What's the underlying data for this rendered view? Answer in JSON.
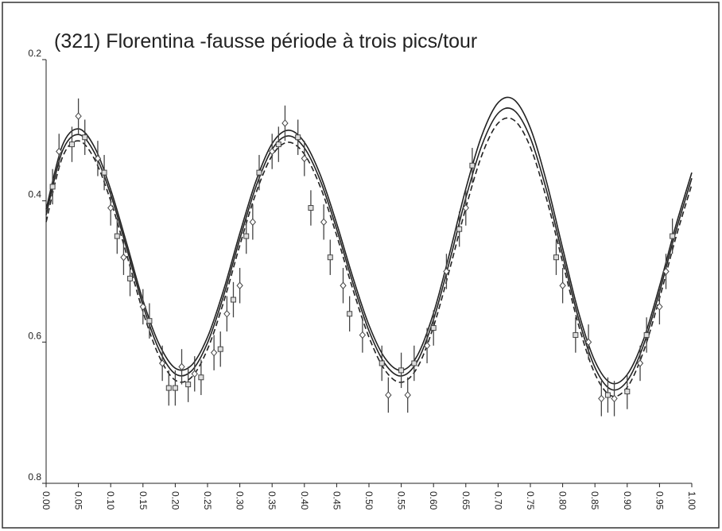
{
  "chart_data": {
    "type": "line",
    "title": "(321) Florentina -fausse période à trois pics/tour",
    "x": [
      0,
      0.025,
      0.05,
      0.075,
      0.1,
      0.125,
      0.15,
      0.175,
      0.2,
      0.225,
      0.25,
      0.275,
      0.3,
      0.325,
      0.35,
      0.375,
      0.4,
      0.425,
      0.45,
      0.475,
      0.5,
      0.525,
      0.55,
      0.575,
      0.6,
      0.625,
      0.65,
      0.675,
      0.7,
      0.725,
      0.75,
      0.775,
      0.8,
      0.825,
      0.85,
      0.875,
      0.9,
      0.925,
      0.95,
      0.975,
      1.0
    ],
    "series": [
      {
        "color": "#222",
        "dash": false,
        "values": [
          0.42,
          0.33,
          0.306,
          0.332,
          0.391,
          0.468,
          0.548,
          0.611,
          0.645,
          0.641,
          0.601,
          0.534,
          0.454,
          0.38,
          0.327,
          0.308,
          0.325,
          0.372,
          0.44,
          0.516,
          0.584,
          0.631,
          0.648,
          0.627,
          0.568,
          0.485,
          0.396,
          0.321,
          0.276,
          0.272,
          0.311,
          0.385,
          0.477,
          0.568,
          0.636,
          0.667,
          0.655,
          0.605,
          0.529,
          0.444,
          0.368
        ]
      },
      {
        "color": "#222",
        "dash": false,
        "values": [
          0.412,
          0.322,
          0.298,
          0.324,
          0.384,
          0.461,
          0.541,
          0.603,
          0.637,
          0.633,
          0.593,
          0.526,
          0.446,
          0.372,
          0.319,
          0.3,
          0.317,
          0.364,
          0.432,
          0.508,
          0.576,
          0.623,
          0.64,
          0.619,
          0.559,
          0.474,
          0.383,
          0.307,
          0.261,
          0.257,
          0.297,
          0.373,
          0.467,
          0.559,
          0.627,
          0.658,
          0.646,
          0.597,
          0.521,
          0.436,
          0.36
        ]
      },
      {
        "color": "#222",
        "dash": true,
        "values": [
          0.43,
          0.339,
          0.315,
          0.341,
          0.4,
          0.477,
          0.557,
          0.62,
          0.654,
          0.65,
          0.61,
          0.543,
          0.463,
          0.389,
          0.336,
          0.317,
          0.334,
          0.381,
          0.449,
          0.525,
          0.593,
          0.64,
          0.657,
          0.636,
          0.578,
          0.497,
          0.41,
          0.335,
          0.29,
          0.286,
          0.324,
          0.397,
          0.487,
          0.577,
          0.645,
          0.676,
          0.664,
          0.614,
          0.538,
          0.453,
          0.377
        ]
      }
    ],
    "points": [
      {
        "marker": "square",
        "color": "#444",
        "error": 0.025,
        "x": [
          0.01,
          0.04,
          0.06,
          0.09,
          0.11,
          0.13,
          0.16,
          0.19,
          0.2,
          0.22,
          0.24,
          0.27,
          0.29,
          0.31,
          0.33,
          0.36,
          0.39,
          0.41,
          0.44,
          0.47,
          0.52,
          0.55,
          0.57,
          0.6,
          0.64,
          0.66,
          0.79,
          0.82,
          0.87,
          0.9,
          0.93,
          0.97
        ],
        "values": [
          0.38,
          0.32,
          0.31,
          0.36,
          0.45,
          0.51,
          0.57,
          0.665,
          0.665,
          0.66,
          0.65,
          0.61,
          0.54,
          0.45,
          0.36,
          0.32,
          0.31,
          0.41,
          0.48,
          0.56,
          0.63,
          0.64,
          0.63,
          0.58,
          0.44,
          0.35,
          0.48,
          0.59,
          0.675,
          0.67,
          0.59,
          0.45
        ]
      },
      {
        "marker": "diamond",
        "color": "#444",
        "error": 0.025,
        "x": [
          0.02,
          0.05,
          0.08,
          0.1,
          0.12,
          0.15,
          0.18,
          0.21,
          0.23,
          0.26,
          0.28,
          0.3,
          0.32,
          0.35,
          0.37,
          0.4,
          0.43,
          0.46,
          0.49,
          0.53,
          0.56,
          0.59,
          0.62,
          0.65,
          0.8,
          0.84,
          0.86,
          0.88,
          0.92,
          0.95,
          0.96
        ],
        "values": [
          0.33,
          0.28,
          0.34,
          0.41,
          0.48,
          0.55,
          0.63,
          0.635,
          0.645,
          0.615,
          0.56,
          0.52,
          0.43,
          0.33,
          0.29,
          0.34,
          0.43,
          0.52,
          0.59,
          0.675,
          0.675,
          0.605,
          0.5,
          0.41,
          0.52,
          0.6,
          0.68,
          0.68,
          0.63,
          0.55,
          0.5
        ]
      }
    ],
    "xlim": [
      0,
      1
    ],
    "xticks": [
      {
        "value": 0,
        "label": "0.00"
      },
      {
        "value": 0.05,
        "label": "0.05"
      },
      {
        "value": 0.1,
        "label": "0.10"
      },
      {
        "value": 0.15,
        "label": "0.15"
      },
      {
        "value": 0.2,
        "label": "0.20"
      },
      {
        "value": 0.25,
        "label": "0.25"
      },
      {
        "value": 0.3,
        "label": "0.30"
      },
      {
        "value": 0.35,
        "label": "0.35"
      },
      {
        "value": 0.4,
        "label": "0.40"
      },
      {
        "value": 0.45,
        "label": "0.45"
      },
      {
        "value": 0.5,
        "label": "0.50"
      },
      {
        "value": 0.55,
        "label": "0.55"
      },
      {
        "value": 0.6,
        "label": "0.60"
      },
      {
        "value": 0.65,
        "label": "0.65"
      },
      {
        "value": 0.7,
        "label": "0.70"
      },
      {
        "value": 0.75,
        "label": "0.75"
      },
      {
        "value": 0.8,
        "label": "0.80"
      },
      {
        "value": 0.85,
        "label": "0.85"
      },
      {
        "value": 0.9,
        "label": "0.90"
      },
      {
        "value": 0.95,
        "label": "0.95"
      },
      {
        "value": 1.0,
        "label": "1.00"
      }
    ],
    "ylim": [
      0.8,
      0.2
    ],
    "yticks": [
      0.2,
      0.4,
      0.6,
      0.8
    ]
  }
}
